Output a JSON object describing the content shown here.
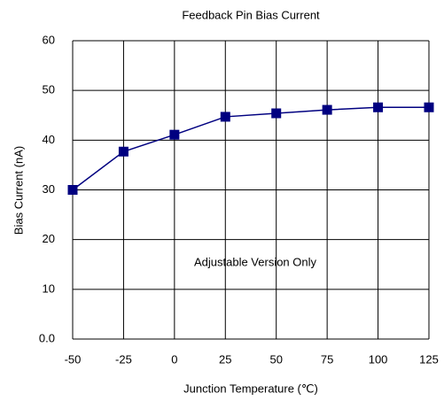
{
  "chart_data": {
    "type": "line",
    "title": "Feedback Pin Bias Current",
    "x_label": "Junction Temperature (℃)",
    "y_label": "Bias Current (nA)",
    "annotation": "Adjustable Version Only",
    "x": [
      -50,
      -25,
      0,
      25,
      50,
      75,
      100,
      125
    ],
    "series": [
      {
        "name": "Bias Current",
        "color": "#000080",
        "values": [
          30,
          37.7,
          41.1,
          44.7,
          45.4,
          46.1,
          46.6,
          46.6
        ]
      }
    ],
    "xlim": [
      -50,
      125
    ],
    "xticks": [
      -50,
      -25,
      0,
      25,
      50,
      75,
      100,
      125
    ],
    "ylim": [
      0,
      60
    ],
    "yticks": [
      {
        "value": 0,
        "label": "0.0"
      },
      10,
      20,
      30,
      40,
      50,
      60
    ],
    "grid": true
  }
}
